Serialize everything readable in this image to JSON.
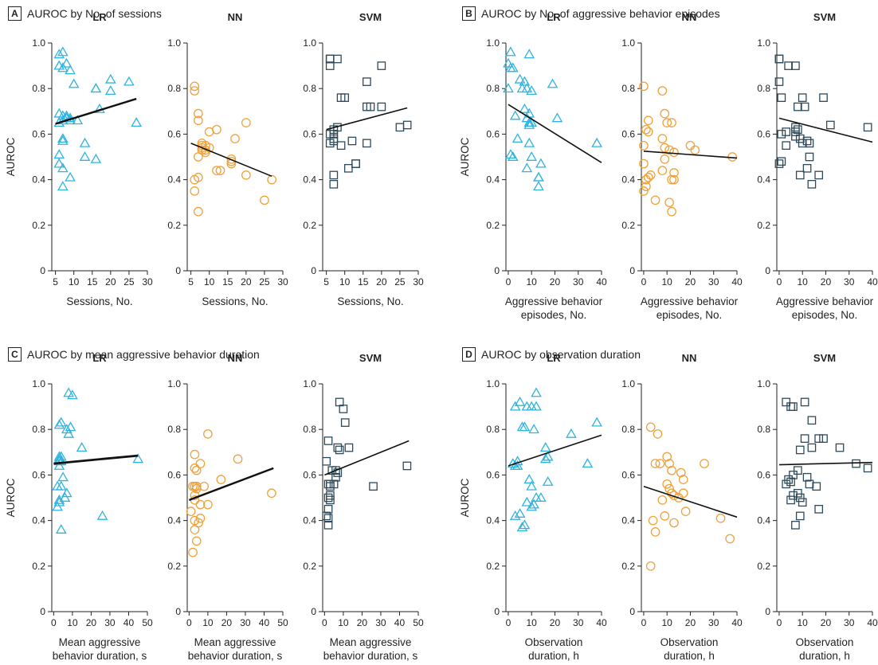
{
  "colors": {
    "LR": "#2fb3e0",
    "NN": "#f0a23a",
    "SVM": "#2e4a5a"
  },
  "chart_data": [
    {
      "type": "scatter",
      "letter": "A",
      "title": "AUROC by No. of sessions",
      "ylabel": "AUROC",
      "xlim": [
        4,
        30
      ],
      "xticks": [
        5,
        10,
        15,
        20,
        25,
        30
      ],
      "xlabel_lines": [
        "Sessions, No."
      ],
      "ylim": [
        0,
        1.0
      ],
      "yticks": [
        0,
        0.2,
        0.4,
        0.6,
        0.8,
        1.0
      ],
      "series": [
        {
          "name": "LR",
          "marker": "triangle",
          "x": [
            6,
            7,
            8,
            6,
            7,
            9,
            10,
            6,
            7,
            8,
            9,
            6,
            7,
            8,
            9,
            11,
            13,
            17,
            16,
            20,
            25,
            20,
            27,
            16,
            13,
            16,
            6,
            7,
            7,
            9,
            6,
            7,
            8,
            7
          ],
          "y": [
            0.95,
            0.96,
            0.91,
            0.9,
            0.89,
            0.88,
            0.82,
            0.69,
            0.68,
            0.68,
            0.67,
            0.65,
            0.66,
            0.67,
            0.66,
            0.66,
            0.56,
            0.71,
            0.8,
            0.84,
            0.83,
            0.79,
            0.65,
            0.49,
            0.5,
            0.8,
            0.51,
            0.58,
            0.57,
            0.41,
            0.47,
            0.45,
            0.67,
            0.37
          ],
          "trend": [
            [
              5,
              0.645
            ],
            [
              27,
              0.755
            ]
          ],
          "trend_width": 2.4
        },
        {
          "name": "NN",
          "marker": "circle",
          "x": [
            6,
            6,
            7,
            7,
            8,
            8,
            9,
            10,
            10,
            9,
            8,
            8,
            9,
            7,
            12,
            12,
            16,
            16,
            17,
            16,
            13,
            20,
            20,
            25,
            27,
            6,
            7,
            7,
            6
          ],
          "y": [
            0.81,
            0.79,
            0.69,
            0.66,
            0.55,
            0.53,
            0.55,
            0.61,
            0.54,
            0.53,
            0.56,
            0.54,
            0.52,
            0.5,
            0.62,
            0.44,
            0.49,
            0.48,
            0.58,
            0.47,
            0.44,
            0.65,
            0.42,
            0.31,
            0.4,
            0.4,
            0.41,
            0.26,
            0.35
          ],
          "trend": [
            [
              5,
              0.56
            ],
            [
              27,
              0.415
            ]
          ],
          "trend_width": 1.6
        },
        {
          "name": "SVM",
          "marker": "square",
          "x": [
            6,
            6,
            6,
            8,
            9,
            10,
            6,
            7,
            7,
            7,
            6,
            7,
            8,
            9,
            12,
            13,
            16,
            17,
            16,
            16,
            20,
            20,
            25,
            27,
            11,
            13,
            7,
            7
          ],
          "y": [
            0.93,
            0.9,
            0.93,
            0.93,
            0.76,
            0.76,
            0.6,
            0.6,
            0.58,
            0.57,
            0.56,
            0.62,
            0.63,
            0.55,
            0.57,
            0.47,
            0.72,
            0.72,
            0.83,
            0.56,
            0.72,
            0.9,
            0.63,
            0.64,
            0.45,
            0.47,
            0.42,
            0.38
          ],
          "trend": [
            [
              5,
              0.62
            ],
            [
              27,
              0.715
            ]
          ],
          "trend_width": 1.6
        }
      ]
    },
    {
      "type": "scatter",
      "letter": "B",
      "title": "AUROC by No. of aggressive behavior episodes",
      "ylabel": "AUROC",
      "xlim": [
        -1,
        40
      ],
      "xticks": [
        0,
        10,
        20,
        30,
        40
      ],
      "xlabel_lines": [
        "Aggressive behavior",
        "episodes, No."
      ],
      "ylim": [
        0,
        1.0
      ],
      "yticks": [
        0,
        0.2,
        0.4,
        0.6,
        0.8,
        1.0
      ],
      "series": [
        {
          "name": "LR",
          "marker": "triangle",
          "x": [
            1,
            0,
            1,
            2,
            0,
            5,
            7,
            6,
            8,
            9,
            10,
            7,
            9,
            10,
            4,
            3,
            8,
            9,
            8,
            9,
            10,
            14,
            13,
            19,
            21,
            38,
            2,
            1,
            9,
            13,
            13
          ],
          "y": [
            0.96,
            0.91,
            0.89,
            0.89,
            0.8,
            0.84,
            0.83,
            0.8,
            0.8,
            0.69,
            0.79,
            0.71,
            0.65,
            0.65,
            0.58,
            0.68,
            0.67,
            0.64,
            0.45,
            0.56,
            0.5,
            0.47,
            0.41,
            0.82,
            0.67,
            0.56,
            0.5,
            0.51,
            0.95,
            0.37,
            0.41
          ],
          "trend": [
            [
              0,
              0.73
            ],
            [
              40,
              0.475
            ]
          ],
          "trend_width": 1.6
        },
        {
          "name": "NN",
          "marker": "circle",
          "x": [
            0,
            1,
            2,
            2,
            1,
            0,
            0,
            8,
            9,
            8,
            9,
            10,
            12,
            11,
            9,
            13,
            13,
            12,
            11,
            20,
            22,
            38,
            0,
            1,
            2,
            3,
            5,
            8,
            12,
            13
          ],
          "y": [
            0.81,
            0.62,
            0.61,
            0.66,
            0.4,
            0.55,
            0.47,
            0.79,
            0.69,
            0.58,
            0.54,
            0.65,
            0.65,
            0.53,
            0.49,
            0.52,
            0.43,
            0.4,
            0.3,
            0.55,
            0.53,
            0.5,
            0.35,
            0.37,
            0.41,
            0.42,
            0.31,
            0.44,
            0.26,
            0.4
          ],
          "trend": [
            [
              0,
              0.525
            ],
            [
              40,
              0.495
            ]
          ],
          "trend_width": 1.6
        },
        {
          "name": "SVM",
          "marker": "square",
          "x": [
            0,
            0,
            4,
            7,
            0,
            1,
            1,
            3,
            7,
            8,
            7,
            9,
            10,
            11,
            7,
            8,
            10,
            12,
            13,
            13,
            17,
            19,
            22,
            38,
            1,
            0,
            3,
            9,
            14,
            12
          ],
          "y": [
            0.93,
            0.93,
            0.9,
            0.9,
            0.83,
            0.76,
            0.6,
            0.61,
            0.63,
            0.72,
            0.61,
            0.58,
            0.56,
            0.72,
            0.59,
            0.62,
            0.76,
            0.57,
            0.56,
            0.5,
            0.42,
            0.76,
            0.64,
            0.63,
            0.48,
            0.47,
            0.55,
            0.42,
            0.38,
            0.45
          ],
          "trend": [
            [
              0,
              0.67
            ],
            [
              40,
              0.565
            ]
          ],
          "trend_width": 1.6
        }
      ]
    },
    {
      "type": "scatter",
      "letter": "C",
      "title": "AUROC by mean aggressive behavior duration",
      "ylabel": "AUROC",
      "xlim": [
        -1,
        50
      ],
      "xticks": [
        0,
        10,
        20,
        30,
        40,
        50
      ],
      "xlabel_lines": [
        "Mean aggressive",
        "behavior duration, s"
      ],
      "ylim": [
        0,
        1.0
      ],
      "yticks": [
        0,
        0.2,
        0.4,
        0.6,
        0.8,
        1.0
      ],
      "series": [
        {
          "name": "LR",
          "marker": "triangle",
          "x": [
            8,
            10,
            4,
            3,
            7,
            9,
            8,
            15,
            3,
            4,
            3,
            4,
            3,
            3,
            4,
            2,
            5,
            6,
            3,
            2,
            3,
            26,
            45,
            4,
            7
          ],
          "y": [
            0.96,
            0.95,
            0.83,
            0.82,
            0.8,
            0.81,
            0.78,
            0.72,
            0.68,
            0.68,
            0.66,
            0.66,
            0.67,
            0.64,
            0.55,
            0.55,
            0.59,
            0.5,
            0.48,
            0.46,
            0.49,
            0.42,
            0.67,
            0.36,
            0.52
          ],
          "trend": [
            [
              0,
              0.65
            ],
            [
              45,
              0.685
            ]
          ],
          "trend_width": 2.8
        },
        {
          "name": "NN",
          "marker": "circle",
          "x": [
            10,
            3,
            4,
            6,
            3,
            4,
            3,
            2,
            4,
            3,
            8,
            6,
            10,
            17,
            26,
            44,
            3,
            6,
            5,
            3,
            4,
            2,
            3,
            1
          ],
          "y": [
            0.78,
            0.69,
            0.62,
            0.65,
            0.63,
            0.55,
            0.55,
            0.55,
            0.54,
            0.51,
            0.55,
            0.47,
            0.47,
            0.58,
            0.67,
            0.52,
            0.4,
            0.41,
            0.39,
            0.36,
            0.31,
            0.26,
            0.49,
            0.44
          ],
          "trend": [
            [
              0,
              0.49
            ],
            [
              45,
              0.63
            ]
          ],
          "trend_width": 2.4
        },
        {
          "name": "SVM",
          "marker": "square",
          "x": [
            8,
            10,
            11,
            2,
            7,
            8,
            6,
            7,
            6,
            5,
            1,
            2,
            3,
            4,
            3,
            2,
            3,
            1,
            2,
            13,
            26,
            44,
            3,
            2,
            2
          ],
          "y": [
            0.92,
            0.89,
            0.83,
            0.75,
            0.72,
            0.71,
            0.62,
            0.61,
            0.59,
            0.56,
            0.66,
            0.56,
            0.56,
            0.62,
            0.55,
            0.5,
            0.51,
            0.42,
            0.45,
            0.72,
            0.55,
            0.64,
            0.49,
            0.41,
            0.38
          ],
          "trend": [
            [
              0,
              0.6
            ],
            [
              45,
              0.75
            ]
          ],
          "trend_width": 1.6
        }
      ]
    },
    {
      "type": "scatter",
      "letter": "D",
      "title": "AUROC by observation duration",
      "ylabel": "AUROC",
      "xlim": [
        -1,
        40
      ],
      "xticks": [
        0,
        10,
        20,
        30,
        40
      ],
      "xlabel_lines": [
        "Observation",
        "duration, h"
      ],
      "ylim": [
        0,
        1.0
      ],
      "yticks": [
        0,
        0.2,
        0.4,
        0.6,
        0.8,
        1.0
      ],
      "series": [
        {
          "name": "LR",
          "marker": "triangle",
          "x": [
            12,
            5,
            8,
            10,
            12,
            3,
            7,
            11,
            6,
            2,
            3,
            4,
            4,
            16,
            17,
            16,
            9,
            10,
            12,
            14,
            17,
            11,
            10,
            8,
            5,
            3,
            27,
            34,
            38,
            7,
            6
          ],
          "y": [
            0.96,
            0.92,
            0.9,
            0.9,
            0.9,
            0.9,
            0.81,
            0.8,
            0.81,
            0.65,
            0.64,
            0.66,
            0.64,
            0.72,
            0.68,
            0.67,
            0.58,
            0.55,
            0.5,
            0.5,
            0.57,
            0.47,
            0.46,
            0.48,
            0.43,
            0.42,
            0.78,
            0.65,
            0.83,
            0.38,
            0.37
          ],
          "trend": [
            [
              0,
              0.64
            ],
            [
              40,
              0.775
            ]
          ],
          "trend_width": 1.6
        },
        {
          "name": "NN",
          "marker": "circle",
          "x": [
            3,
            6,
            5,
            7,
            10,
            12,
            11,
            16,
            17,
            26,
            10,
            11,
            12,
            13,
            15,
            8,
            9,
            13,
            17,
            18,
            33,
            37,
            4,
            5,
            3
          ],
          "y": [
            0.81,
            0.78,
            0.65,
            0.65,
            0.68,
            0.62,
            0.65,
            0.61,
            0.58,
            0.65,
            0.56,
            0.54,
            0.52,
            0.51,
            0.5,
            0.49,
            0.42,
            0.39,
            0.52,
            0.44,
            0.41,
            0.32,
            0.4,
            0.35,
            0.2
          ],
          "trend": [
            [
              0,
              0.55
            ],
            [
              40,
              0.415
            ]
          ],
          "trend_width": 1.6
        },
        {
          "name": "SVM",
          "marker": "square",
          "x": [
            3,
            5,
            6,
            11,
            14,
            11,
            14,
            17,
            19,
            26,
            9,
            8,
            6,
            5,
            4,
            3,
            6,
            8,
            9,
            12,
            13,
            16,
            33,
            38,
            10,
            17,
            5,
            7,
            9
          ],
          "y": [
            0.92,
            0.9,
            0.9,
            0.92,
            0.84,
            0.76,
            0.72,
            0.76,
            0.76,
            0.72,
            0.71,
            0.62,
            0.6,
            0.57,
            0.58,
            0.56,
            0.51,
            0.52,
            0.5,
            0.59,
            0.56,
            0.55,
            0.65,
            0.63,
            0.48,
            0.45,
            0.49,
            0.38,
            0.42
          ],
          "trend": [
            [
              0,
              0.645
            ],
            [
              40,
              0.655
            ]
          ],
          "trend_width": 1.6
        }
      ]
    }
  ]
}
